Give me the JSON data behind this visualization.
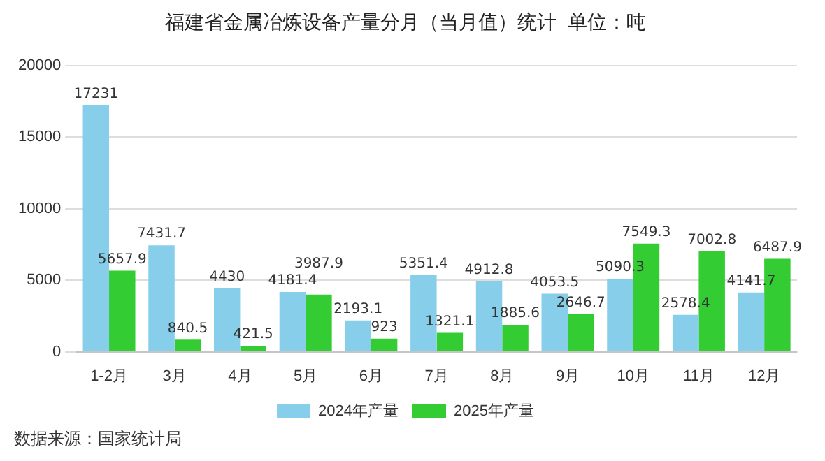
{
  "chart_data": {
    "type": "bar",
    "title": "福建省金属冶炼设备产量分月（当月值）统计  单位：吨",
    "categories": [
      "1-2月",
      "3月",
      "4月",
      "5月",
      "6月",
      "7月",
      "8月",
      "9月",
      "10月",
      "11月",
      "12月"
    ],
    "series": [
      {
        "name": "2024年产量",
        "color": "#87ceeb",
        "values": [
          17231,
          7431.7,
          4430,
          4181.4,
          2193.1,
          5351.4,
          4912.8,
          4053.5,
          5090.3,
          2578.4,
          4141.7
        ]
      },
      {
        "name": "2025年产量",
        "color": "#33cc33",
        "values": [
          5657.9,
          840.5,
          421.5,
          3987.9,
          923,
          1321.1,
          1885.6,
          2646.7,
          7549.3,
          7002.8,
          6487.9
        ]
      }
    ],
    "ylim": [
      0,
      20000
    ],
    "yticks": [
      0,
      5000,
      10000,
      15000,
      20000
    ],
    "grid": "y",
    "legend": "bottom",
    "data_labels": true,
    "annotations": [
      "数据来源：国家统计局"
    ]
  }
}
